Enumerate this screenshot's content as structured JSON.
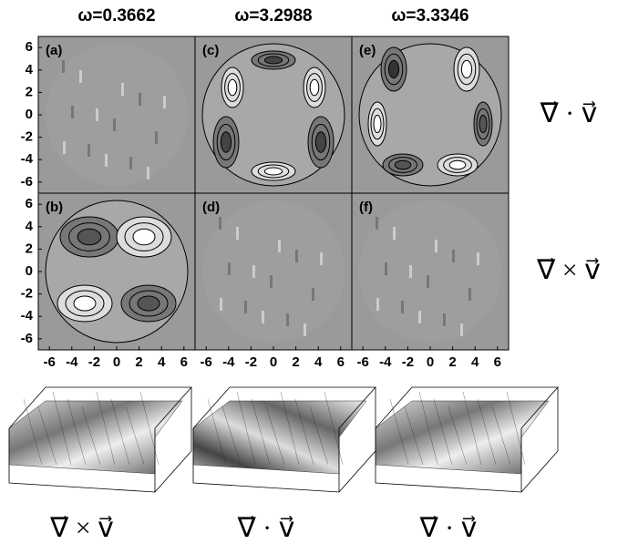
{
  "figure": {
    "column_titles": [
      "ω=0.3662",
      "ω=3.2988",
      "ω=3.3346"
    ],
    "panel_labels": [
      "(a)",
      "(b)",
      "(c)",
      "(d)",
      "(e)",
      "(f)"
    ],
    "ticks": [
      -6,
      -4,
      -2,
      0,
      2,
      4,
      6
    ],
    "row_labels": [
      "∇⃗ · v⃗",
      "∇⃗ × v⃗"
    ],
    "surface_labels": [
      "∇⃗ × v⃗",
      "∇⃗ · v⃗",
      "∇⃗ · v⃗"
    ]
  }
}
